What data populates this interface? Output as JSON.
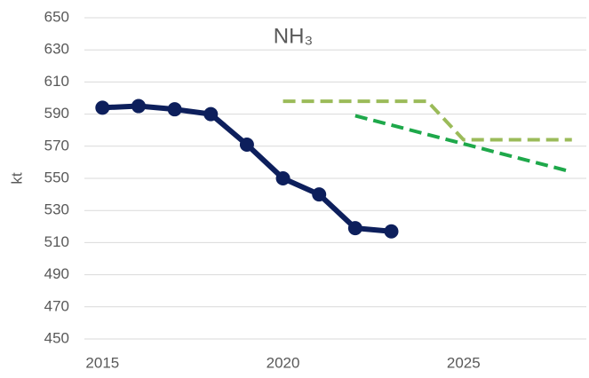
{
  "chart_data": {
    "type": "line",
    "title": "NH₃",
    "y_label": "kt",
    "xlim": [
      2014.5,
      2028.4
    ],
    "xticks": [
      2015,
      2020,
      2025
    ],
    "ylim": [
      450,
      650
    ],
    "yticks": [
      450,
      470,
      490,
      510,
      530,
      550,
      570,
      590,
      610,
      630,
      650
    ],
    "grid": true,
    "series": [
      {
        "color": "#0d1f5c",
        "dashed": false,
        "markers": true,
        "x": [
          2015,
          2016,
          2017,
          2018,
          2019,
          2020,
          2021,
          2022,
          2023
        ],
        "values": [
          594,
          595,
          593,
          590,
          571,
          550,
          540,
          519,
          517
        ]
      },
      {
        "color": "#9bbb59",
        "dashed": true,
        "markers": false,
        "x": [
          2020,
          2024,
          2025,
          2028
        ],
        "values": [
          598,
          598,
          574,
          574
        ]
      },
      {
        "color": "#1ea84a",
        "dashed": true,
        "markers": false,
        "x": [
          2022,
          2028
        ],
        "values": [
          589,
          554
        ]
      }
    ]
  }
}
